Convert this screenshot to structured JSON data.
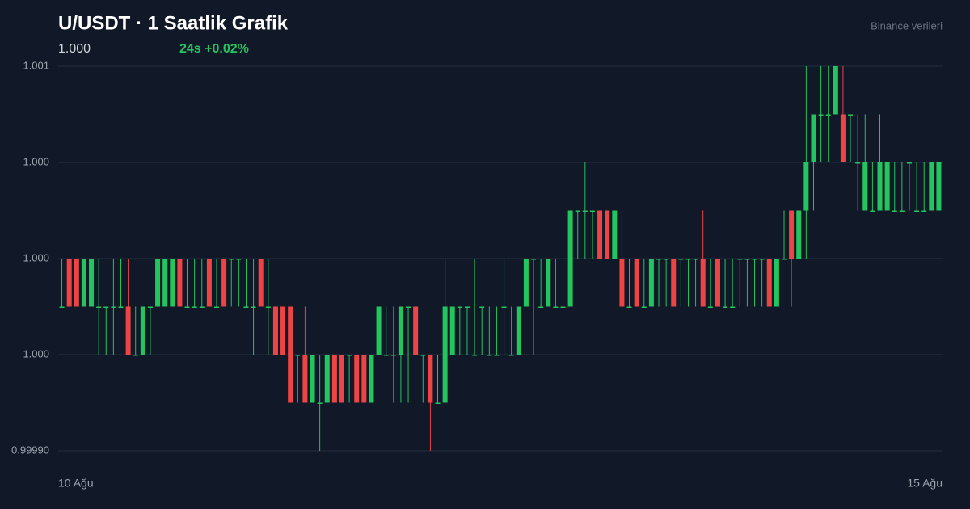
{
  "chart_data": {
    "type": "candlestick",
    "title": "U/USDT · 1 Saatlik Grafik",
    "price": "1.000",
    "change": "24s +0.02%",
    "source": "Binance verileri",
    "up_color": "#22c55e",
    "down_color": "#ef4444",
    "grid": true,
    "ylim": [
      0.9999,
      1.0007
    ],
    "yticks": [
      {
        "value": 0.9999,
        "label": "0.99990"
      },
      {
        "value": 1.0001,
        "label": "1.000"
      },
      {
        "value": 1.0003,
        "label": "1.000"
      },
      {
        "value": 1.0005,
        "label": "1.000"
      },
      {
        "value": 1.0007,
        "label": "1.001"
      }
    ],
    "categories": [
      "10 Ağu",
      null,
      null,
      null,
      null,
      null,
      null,
      null,
      null,
      null,
      null,
      null,
      null,
      null,
      null,
      null,
      null,
      null,
      null,
      null,
      null,
      null,
      null,
      null,
      null,
      null,
      null,
      null,
      null,
      null,
      null,
      null,
      null,
      null,
      null,
      null,
      null,
      null,
      null,
      null,
      null,
      null,
      null,
      null,
      null,
      null,
      null,
      null,
      null,
      null,
      null,
      null,
      null,
      null,
      null,
      null,
      null,
      null,
      null,
      null,
      null,
      null,
      null,
      null,
      null,
      null,
      null,
      null,
      null,
      null,
      null,
      null,
      null,
      null,
      null,
      null,
      null,
      null,
      null,
      null,
      null,
      null,
      null,
      null,
      null,
      null,
      null,
      null,
      null,
      null,
      null,
      null,
      null,
      null,
      null,
      null,
      null,
      null,
      null,
      null,
      null,
      null,
      null,
      null,
      null,
      null,
      null,
      null,
      null,
      null,
      null,
      null,
      null,
      null,
      null,
      null,
      null,
      null,
      null,
      "15 Ağu"
    ],
    "open": [
      1.0002,
      1.0003,
      1.0003,
      1.0002,
      1.0002,
      1.0002,
      1.0002,
      1.0002,
      1.0002,
      1.0002,
      1.0001,
      1.0001,
      1.0002,
      1.0002,
      1.0002,
      1.0002,
      1.0003,
      1.0002,
      1.0002,
      1.0002,
      1.0003,
      1.0002,
      1.0003,
      1.0003,
      1.0003,
      1.0002,
      1.0002,
      1.0003,
      1.0002,
      1.0002,
      1.0002,
      1.0002,
      1.0001,
      1.0001,
      1,
      1,
      1,
      1.0001,
      1.0001,
      1.0001,
      1.0001,
      1.0001,
      1,
      1.0001,
      1.0001,
      1.0001,
      1.0001,
      1.0002,
      1.0002,
      1.0001,
      1.0001,
      1,
      1,
      1.0001,
      1.0002,
      1.0002,
      1.0001,
      1.0002,
      1.0001,
      1.0001,
      1.0002,
      1.0001,
      1.0001,
      1.0002,
      1.0003,
      1.0002,
      1.0002,
      1.0002,
      1.0002,
      1.0002,
      1.0004,
      1.0004,
      1.0004,
      1.0004,
      1.0004,
      1.0003,
      1.0003,
      1.0002,
      1.0003,
      1.0002,
      1.0002,
      1.0003,
      1.0003,
      1.0003,
      1.0003,
      1.0003,
      1.0003,
      1.0003,
      1.0002,
      1.0003,
      1.0002,
      1.0002,
      1.0003,
      1.0003,
      1.0003,
      1.0003,
      1.0003,
      1.0002,
      1.0003,
      1.0004,
      1.0003,
      1.0004,
      1.0005,
      1.0006,
      1.0006,
      1.0006,
      1.0006,
      1.0006,
      1.0005,
      1.0004,
      1.0004,
      1.0004,
      1.0004,
      1.0004,
      1.0004,
      1.0005,
      1.0004,
      1.0004,
      1.0004,
      1.0004
    ],
    "high": [
      1.0003,
      1.0003,
      1.0003,
      1.0003,
      1.0003,
      1.0003,
      1.0002,
      1.0003,
      1.0003,
      1.0003,
      1.0002,
      1.0002,
      1.0002,
      1.0003,
      1.0003,
      1.0003,
      1.0003,
      1.0003,
      1.0003,
      1.0003,
      1.0003,
      1.0003,
      1.0003,
      1.0003,
      1.0003,
      1.0003,
      1.0003,
      1.0003,
      1.0003,
      1.0002,
      1.0002,
      1.0002,
      1.0001,
      1.0002,
      1.0001,
      1.0001,
      1.0001,
      1.0001,
      1.0001,
      1.0001,
      1.0001,
      1.0001,
      1.0001,
      1.0002,
      1.0002,
      1.0002,
      1.0002,
      1.0002,
      1.0002,
      1.0001,
      1.0001,
      1.0001,
      1.0003,
      1.0002,
      1.0002,
      1.0002,
      1.0003,
      1.0002,
      1.0002,
      1.0002,
      1.0003,
      1.0002,
      1.0002,
      1.0003,
      1.0003,
      1.0003,
      1.0003,
      1.0003,
      1.0004,
      1.0004,
      1.0004,
      1.0005,
      1.0004,
      1.0004,
      1.0004,
      1.0004,
      1.0004,
      1.0003,
      1.0003,
      1.0003,
      1.0003,
      1.0003,
      1.0003,
      1.0003,
      1.0003,
      1.0003,
      1.0003,
      1.0004,
      1.0003,
      1.0003,
      1.0003,
      1.0003,
      1.0003,
      1.0003,
      1.0003,
      1.0003,
      1.0003,
      1.0003,
      1.0004,
      1.0004,
      1.0004,
      1.0007,
      1.0006,
      1.0007,
      1.0007,
      1.0007,
      1.0007,
      1.0006,
      1.0006,
      1.0006,
      1.0005,
      1.0006,
      1.0005,
      1.0005,
      1.0005,
      1.0005,
      1.0005,
      1.0005,
      1.0005,
      1.0005
    ],
    "low": [
      1.0002,
      1.0002,
      1.0002,
      1.0002,
      1.0002,
      1.0001,
      1.0001,
      1.0001,
      1.0002,
      1.0001,
      1.0001,
      1.0001,
      1.0001,
      1.0002,
      1.0002,
      1.0002,
      1.0002,
      1.0002,
      1.0002,
      1.0002,
      1.0002,
      1.0002,
      1.0002,
      1.0002,
      1.0002,
      1.0002,
      1.0001,
      1.0002,
      1.0001,
      1.0001,
      1.0001,
      1,
      1,
      1,
      1,
      0.9999,
      1,
      1,
      1,
      1,
      1,
      1,
      1,
      1.0001,
      1.0001,
      1,
      1,
      1,
      1.0001,
      1,
      0.9999,
      1,
      1,
      1.0001,
      1.0001,
      1.0001,
      1.0001,
      1.0001,
      1.0001,
      1.0001,
      1.0001,
      1.0001,
      1.0001,
      1.0002,
      1.0001,
      1.0002,
      1.0002,
      1.0002,
      1.0002,
      1.0002,
      1.0003,
      1.0003,
      1.0003,
      1.0003,
      1.0003,
      1.0003,
      1.0002,
      1.0002,
      1.0002,
      1.0002,
      1.0002,
      1.0002,
      1.0002,
      1.0002,
      1.0002,
      1.0002,
      1.0002,
      1.0002,
      1.0002,
      1.0002,
      1.0002,
      1.0002,
      1.0002,
      1.0002,
      1.0002,
      1.0002,
      1.0002,
      1.0002,
      1.0003,
      1.0002,
      1.0003,
      1.0003,
      1.0004,
      1.0005,
      1.0005,
      1.0006,
      1.0005,
      1.0005,
      1.0004,
      1.0004,
      1.0004,
      1.0004,
      1.0004,
      1.0004,
      1.0004,
      1.0004,
      1.0004,
      1.0004,
      1.0004,
      1.0004
    ],
    "close": [
      1.0002,
      1.0002,
      1.0002,
      1.0003,
      1.0003,
      1.0002,
      1.0002,
      1.0002,
      1.0002,
      1.0001,
      1.0001,
      1.0002,
      1.0002,
      1.0003,
      1.0003,
      1.0003,
      1.0002,
      1.0002,
      1.0002,
      1.0002,
      1.0002,
      1.0002,
      1.0002,
      1.0003,
      1.0003,
      1.0002,
      1.0002,
      1.0002,
      1.0002,
      1.0001,
      1.0001,
      1,
      1.0001,
      1,
      1.0001,
      1,
      1.0001,
      1,
      1,
      1.0001,
      1,
      1,
      1.0001,
      1.0002,
      1.0001,
      1.0001,
      1.0002,
      1.0002,
      1.0001,
      1.0001,
      1,
      1,
      1.0002,
      1.0002,
      1.0002,
      1.0002,
      1.0001,
      1.0002,
      1.0001,
      1.0001,
      1.0002,
      1.0001,
      1.0002,
      1.0003,
      1.0003,
      1.0002,
      1.0003,
      1.0002,
      1.0002,
      1.0004,
      1.0004,
      1.0004,
      1.0004,
      1.0003,
      1.0003,
      1.0004,
      1.0002,
      1.0002,
      1.0002,
      1.0002,
      1.0003,
      1.0003,
      1.0003,
      1.0002,
      1.0003,
      1.0003,
      1.0003,
      1.0002,
      1.0002,
      1.0002,
      1.0002,
      1.0002,
      1.0003,
      1.0003,
      1.0003,
      1.0003,
      1.0002,
      1.0003,
      1.0003,
      1.0003,
      1.0004,
      1.0005,
      1.0006,
      1.0006,
      1.0006,
      1.0007,
      1.0005,
      1.0006,
      1.0005,
      1.0005,
      1.0004,
      1.0005,
      1.0005,
      1.0004,
      1.0004,
      1.0005,
      1.0004,
      1.0004,
      1.0005,
      1.0005
    ]
  }
}
